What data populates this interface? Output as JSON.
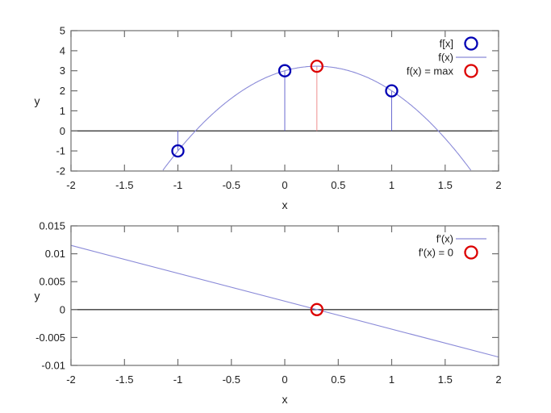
{
  "figure": {
    "background": "#ffffff",
    "description": "Two stacked gnuplot-style plots: f(x) parabola with sample points and maximum (top), derivative f'(x) with zero crossing (bottom)"
  },
  "colors": {
    "frame": "#6e6e6e",
    "zero_line": "#3a3a3a",
    "text": "#1c1c1c",
    "point_blue": "#0000b4",
    "point_red": "#dc0000",
    "curve_blue": "#8a8ad8",
    "impulse_blue": "#6b6bd1",
    "impulse_red": "#ef9090"
  },
  "chart_data": [
    {
      "name": "f-plot",
      "type": "line",
      "title": "",
      "xlabel": "x",
      "ylabel": "y",
      "xlim": [
        -2,
        2
      ],
      "ylim": [
        -2,
        5
      ],
      "xticks": [
        -2,
        -1.5,
        -1,
        -0.5,
        0,
        0.5,
        1,
        1.5,
        2
      ],
      "xtick_labels": [
        "-2",
        "-1.5",
        "-1",
        "-0.5",
        "0",
        "0.5",
        "1",
        "1.5",
        "2"
      ],
      "yticks": [
        -2,
        -1,
        0,
        1,
        2,
        3,
        4,
        5
      ],
      "ytick_labels": [
        "-2",
        "-1",
        "0",
        "1",
        "2",
        "3",
        "4",
        "5"
      ],
      "grid": false,
      "zero_line": true,
      "legend_position": "top-right",
      "impulses": [
        {
          "x": -1,
          "y": -1,
          "color": "#6b6bd1"
        },
        {
          "x": 0,
          "y": 3,
          "color": "#6b6bd1"
        },
        {
          "x": 1,
          "y": 2,
          "color": "#6b6bd1"
        },
        {
          "x": 0.3,
          "y": 3.225,
          "color": "#ef9090"
        }
      ],
      "curves": [
        {
          "name": "f(x)",
          "poly_coeffs": [
            -2.5,
            1.5,
            3
          ],
          "color": "#8a8ad8"
        }
      ],
      "scatter": [
        {
          "name": "f[x]",
          "color": "#0000b4",
          "points": [
            [
              -1,
              -1
            ],
            [
              0,
              3
            ],
            [
              1,
              2
            ]
          ]
        },
        {
          "name": "f(x) = max",
          "color": "#dc0000",
          "points": [
            [
              0.3,
              3.225
            ]
          ]
        }
      ],
      "legend": [
        {
          "label": "f[x]",
          "symbol": "circle",
          "color": "#0000b4"
        },
        {
          "label": "f(x)",
          "symbol": "line",
          "color": "#8a8ad8"
        },
        {
          "label": "f(x) = max",
          "symbol": "circle",
          "color": "#dc0000"
        }
      ]
    },
    {
      "name": "f-prime-plot",
      "type": "line",
      "title": "",
      "xlabel": "x",
      "ylabel": "y",
      "xlim": [
        -2,
        2
      ],
      "ylim": [
        -0.01,
        0.015
      ],
      "xticks": [
        -2,
        -1.5,
        -1,
        -0.5,
        0,
        0.5,
        1,
        1.5,
        2
      ],
      "xtick_labels": [
        "-2",
        "-1.5",
        "-1",
        "-0.5",
        "0",
        "0.5",
        "1",
        "1.5",
        "2"
      ],
      "yticks": [
        -0.01,
        -0.005,
        0,
        0.005,
        0.01,
        0.015
      ],
      "ytick_labels": [
        "-0.01",
        "-0.005",
        "0",
        "0.005",
        "0.01",
        "0.015"
      ],
      "grid": false,
      "zero_line": true,
      "legend_position": "top-right",
      "impulses": [],
      "curves": [
        {
          "name": "f'(x)",
          "points": [
            [
              -2,
              0.0115
            ],
            [
              2,
              -0.0085
            ]
          ],
          "color": "#8a8ad8"
        }
      ],
      "scatter": [
        {
          "name": "f'(x) = 0",
          "color": "#dc0000",
          "points": [
            [
              0.3,
              0
            ]
          ]
        }
      ],
      "legend": [
        {
          "label": "f'(x)",
          "symbol": "line",
          "color": "#8a8ad8"
        },
        {
          "label": "f'(x) = 0",
          "symbol": "circle",
          "color": "#dc0000"
        }
      ]
    }
  ]
}
